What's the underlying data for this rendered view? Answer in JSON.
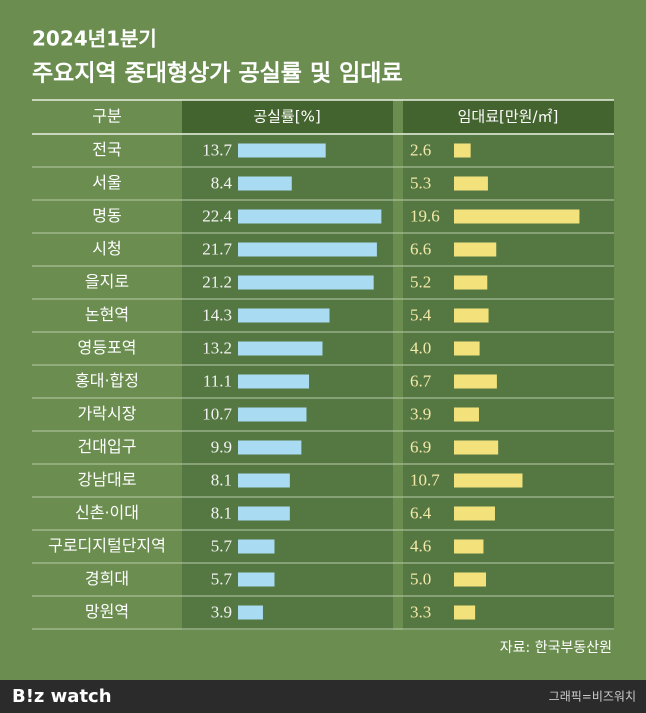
{
  "chart_data": {
    "type": "bar",
    "subtitle": "2024년1분기",
    "title": "주요지역 중대형상가 공실률 및 임대료",
    "category_header": "구분",
    "categories": [
      "전국",
      "서울",
      "명동",
      "시청",
      "을지로",
      "논현역",
      "영등포역",
      "홍대·합정",
      "가락시장",
      "건대입구",
      "강남대로",
      "신촌·이대",
      "구로디지털단지역",
      "경희대",
      "망원역"
    ],
    "series": [
      {
        "name": "공실률[%]",
        "color": "#a9dcf2",
        "values": [
          13.7,
          8.4,
          22.4,
          21.7,
          21.2,
          14.3,
          13.2,
          11.1,
          10.7,
          9.9,
          8.1,
          8.1,
          5.7,
          5.7,
          3.9
        ],
        "value_labels": [
          "13.7",
          "8.4",
          "22.4",
          "21.7",
          "21.2",
          "14.3",
          "13.2",
          "11.1",
          "10.7",
          "9.9",
          "8.1",
          "8.1",
          "5.7",
          "5.7",
          "3.9"
        ]
      },
      {
        "name": "임대료[만원/㎡]",
        "color": "#f3e27c",
        "values": [
          2.6,
          5.3,
          19.6,
          6.6,
          5.2,
          5.4,
          4.0,
          6.7,
          3.9,
          6.9,
          10.7,
          6.4,
          4.6,
          5.0,
          3.3
        ],
        "value_labels": [
          "2.6",
          "5.3",
          "19.6",
          "6.6",
          "5.2",
          "5.4",
          "4.0",
          "6.7",
          "3.9",
          "6.9",
          "10.7",
          "6.4",
          "4.6",
          "5.0",
          "3.3"
        ]
      }
    ],
    "source": "자료: 한국부동산원",
    "logo": "B!z watch",
    "credit": "그래픽=비즈워치"
  }
}
